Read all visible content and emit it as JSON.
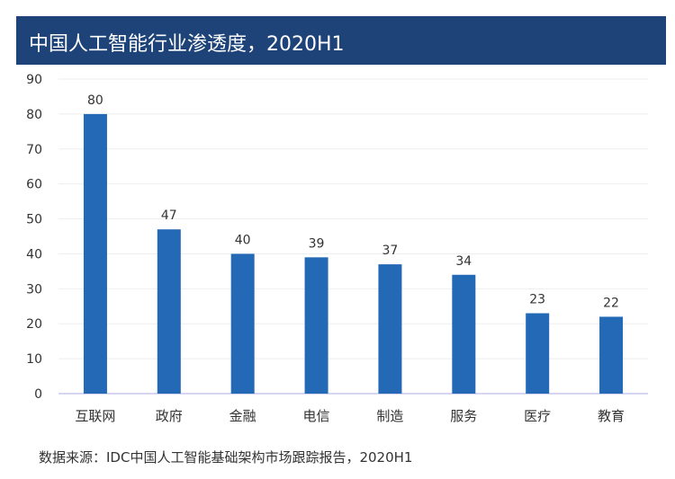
{
  "chart_data": {
    "type": "bar",
    "title": "中国人工智能行业渗透度，2020H1",
    "categories": [
      "互联网",
      "政府",
      "金融",
      "电信",
      "制造",
      "服务",
      "医疗",
      "教育"
    ],
    "values": [
      80,
      47,
      40,
      39,
      37,
      34,
      23,
      22
    ],
    "xlabel": "",
    "ylabel": "",
    "ylim": [
      0,
      90
    ],
    "yticks": [
      0,
      10,
      20,
      30,
      40,
      50,
      60,
      70,
      80,
      90
    ],
    "grid": true,
    "bar_color": "#2369b5",
    "source": "数据来源：IDC中国人工智能基础架构市场跟踪报告，2020H1"
  }
}
